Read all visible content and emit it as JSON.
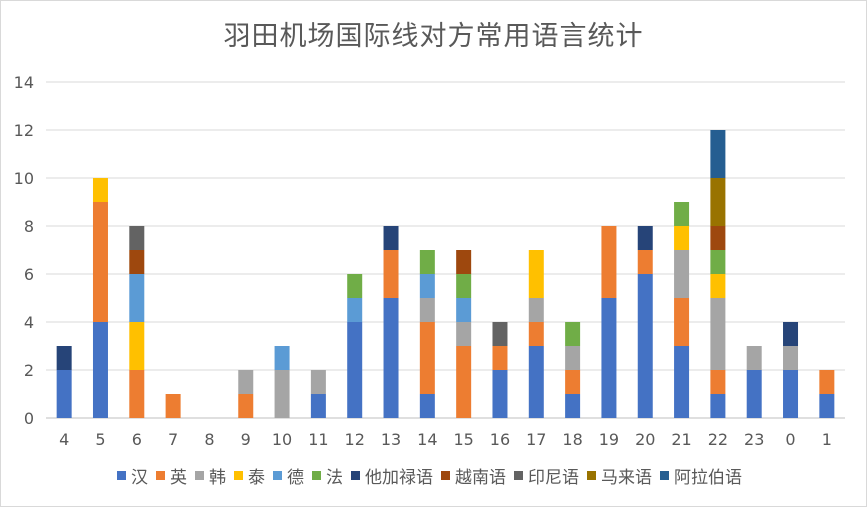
{
  "chart_data": {
    "type": "bar",
    "stacked": true,
    "title": "羽田机场国际线对方常用语言统计",
    "xlabel": "",
    "ylabel": "",
    "ylim": [
      0,
      14
    ],
    "yticks": [
      0,
      2,
      4,
      6,
      8,
      10,
      12,
      14
    ],
    "grid": true,
    "legend_position": "bottom",
    "categories": [
      "4",
      "5",
      "6",
      "7",
      "8",
      "9",
      "10",
      "11",
      "12",
      "13",
      "14",
      "15",
      "16",
      "17",
      "18",
      "19",
      "20",
      "21",
      "22",
      "23",
      "0",
      "1"
    ],
    "series": [
      {
        "name": "汉",
        "color": "#4472C4",
        "values": [
          2,
          4,
          0,
          0,
          0,
          0,
          0,
          1,
          4,
          5,
          1,
          0,
          2,
          3,
          1,
          5,
          6,
          3,
          1,
          2,
          2,
          1
        ]
      },
      {
        "name": "英",
        "color": "#ED7D31",
        "values": [
          0,
          5,
          2,
          1,
          0,
          1,
          0,
          0,
          0,
          2,
          3,
          3,
          1,
          1,
          1,
          3,
          1,
          2,
          1,
          0,
          0,
          1
        ]
      },
      {
        "name": "韩",
        "color": "#A5A5A5",
        "values": [
          0,
          0,
          0,
          0,
          0,
          1,
          2,
          1,
          0,
          0,
          1,
          1,
          0,
          1,
          1,
          0,
          0,
          2,
          3,
          1,
          1,
          0
        ]
      },
      {
        "name": "泰",
        "color": "#FFC000",
        "values": [
          0,
          1,
          2,
          0,
          0,
          0,
          0,
          0,
          0,
          0,
          0,
          0,
          0,
          2,
          0,
          0,
          0,
          1,
          1,
          0,
          0,
          0
        ]
      },
      {
        "name": "德",
        "color": "#5B9BD5",
        "values": [
          0,
          0,
          2,
          0,
          0,
          0,
          1,
          0,
          1,
          0,
          1,
          1,
          0,
          0,
          0,
          0,
          0,
          0,
          0,
          0,
          0,
          0
        ]
      },
      {
        "name": "法",
        "color": "#70AD47",
        "values": [
          0,
          0,
          0,
          0,
          0,
          0,
          0,
          0,
          1,
          0,
          1,
          1,
          0,
          0,
          1,
          0,
          0,
          1,
          1,
          0,
          0,
          0
        ]
      },
      {
        "name": "他加禄语",
        "color": "#264478",
        "values": [
          1,
          0,
          0,
          0,
          0,
          0,
          0,
          0,
          0,
          1,
          0,
          0,
          0,
          0,
          0,
          0,
          1,
          0,
          0,
          0,
          1,
          0
        ]
      },
      {
        "name": "越南语",
        "color": "#9E480E",
        "values": [
          0,
          0,
          1,
          0,
          0,
          0,
          0,
          0,
          0,
          0,
          0,
          1,
          0,
          0,
          0,
          0,
          0,
          0,
          1,
          0,
          0,
          0
        ]
      },
      {
        "name": "印尼语",
        "color": "#636363",
        "values": [
          0,
          0,
          1,
          0,
          0,
          0,
          0,
          0,
          0,
          0,
          0,
          0,
          1,
          0,
          0,
          0,
          0,
          0,
          0,
          0,
          0,
          0
        ]
      },
      {
        "name": "马来语",
        "color": "#997300",
        "values": [
          0,
          0,
          0,
          0,
          0,
          0,
          0,
          0,
          0,
          0,
          0,
          0,
          0,
          0,
          0,
          0,
          0,
          0,
          2,
          0,
          0,
          0
        ]
      },
      {
        "name": "阿拉伯语",
        "color": "#255E91",
        "values": [
          0,
          0,
          0,
          0,
          0,
          0,
          0,
          0,
          0,
          0,
          0,
          0,
          0,
          0,
          0,
          0,
          0,
          0,
          2,
          0,
          0,
          0
        ]
      }
    ]
  }
}
